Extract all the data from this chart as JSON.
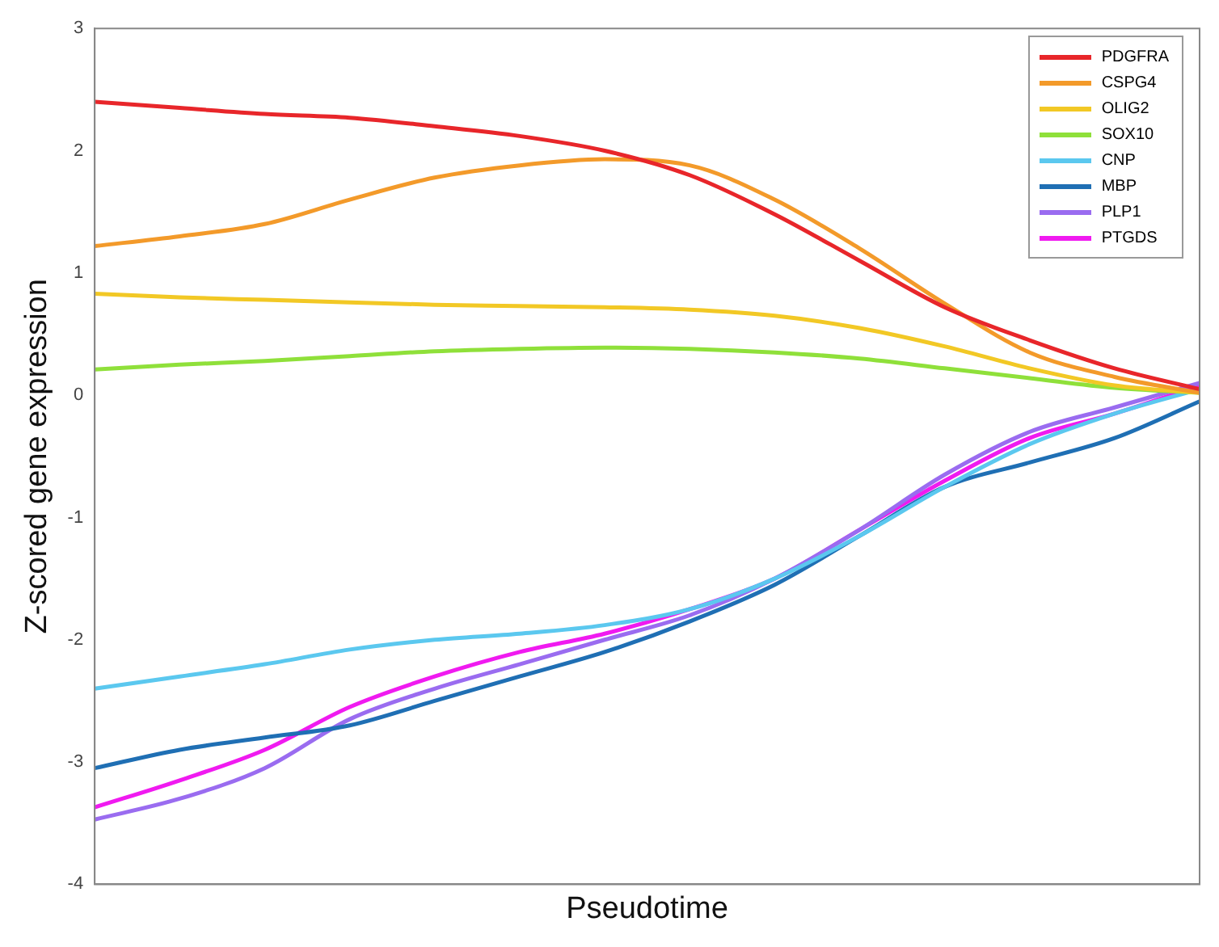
{
  "chart_data": {
    "type": "line",
    "xlabel": "Pseudotime",
    "ylabel": "Z-scored gene expression",
    "categories": [
      null,
      null,
      null,
      null,
      null,
      null,
      null,
      null,
      null,
      null,
      null,
      null,
      null,
      null
    ],
    "ylim": [
      -4,
      3
    ],
    "yticks": [
      -4,
      -3,
      -2,
      -1,
      0,
      1,
      2,
      3
    ],
    "grid": false,
    "legend": "top right",
    "marker": "none",
    "line_style": "solid",
    "series": [
      {
        "name": "PDGFRA",
        "color": "#e8262a",
        "values": [
          2.4,
          2.35,
          2.3,
          2.27,
          2.2,
          2.12,
          2.0,
          1.8,
          1.48,
          1.1,
          0.72,
          0.45,
          0.22,
          0.05
        ]
      },
      {
        "name": "CSPG4",
        "color": "#f39a2a",
        "values": [
          1.22,
          1.3,
          1.4,
          1.6,
          1.78,
          1.88,
          1.93,
          1.88,
          1.6,
          1.2,
          0.75,
          0.35,
          0.15,
          0.02
        ]
      },
      {
        "name": "OLIG2",
        "color": "#f2c825",
        "values": [
          0.83,
          0.8,
          0.78,
          0.76,
          0.74,
          0.73,
          0.72,
          0.7,
          0.65,
          0.55,
          0.4,
          0.22,
          0.08,
          0.02
        ]
      },
      {
        "name": "SOX10",
        "color": "#8fe03a",
        "values": [
          0.21,
          0.25,
          0.28,
          0.32,
          0.36,
          0.38,
          0.39,
          0.38,
          0.35,
          0.3,
          0.22,
          0.14,
          0.06,
          0.02
        ]
      },
      {
        "name": "CNP",
        "color": "#5bc8ef",
        "values": [
          -2.4,
          -2.3,
          -2.2,
          -2.08,
          -2.0,
          -1.95,
          -1.88,
          -1.75,
          -1.5,
          -1.15,
          -0.75,
          -0.4,
          -0.15,
          0.05
        ]
      },
      {
        "name": "MBP",
        "color": "#1f6fb4",
        "values": [
          -3.05,
          -2.9,
          -2.8,
          -2.7,
          -2.5,
          -2.3,
          -2.1,
          -1.85,
          -1.55,
          -1.15,
          -0.75,
          -0.55,
          -0.35,
          -0.05
        ]
      },
      {
        "name": "PLP1",
        "color": "#9a6cf0",
        "values": [
          -3.47,
          -3.3,
          -3.05,
          -2.65,
          -2.4,
          -2.2,
          -2.0,
          -1.8,
          -1.5,
          -1.1,
          -0.65,
          -0.3,
          -0.1,
          0.1
        ]
      },
      {
        "name": "PTGDS",
        "color": "#f01af0",
        "values": [
          -3.37,
          -3.15,
          -2.9,
          -2.55,
          -2.3,
          -2.1,
          -1.95,
          -1.75,
          -1.5,
          -1.1,
          -0.7,
          -0.35,
          -0.15,
          0.08
        ]
      }
    ]
  }
}
